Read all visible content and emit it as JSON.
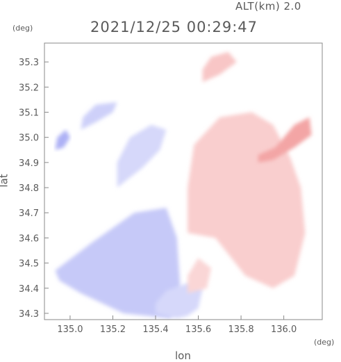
{
  "header": {
    "altitude": "ALT(km) 2.0",
    "timestamp": "2021/12/25 00:29:47"
  },
  "units": {
    "y": "(deg)",
    "x": "(deg)"
  },
  "chart_data": {
    "type": "heatmap",
    "title": "",
    "xlabel": "lon",
    "ylabel": "lat",
    "xlim": [
      134.88,
      136.18
    ],
    "ylim": [
      34.275,
      35.375
    ],
    "xticks": [
      135.0,
      135.2,
      135.4,
      135.6,
      135.8,
      136.0
    ],
    "xtick_labels": [
      "135.0",
      "135.2",
      "135.4",
      "135.6",
      "135.8",
      "136.0"
    ],
    "yticks": [
      34.3,
      34.4,
      34.5,
      34.6,
      34.7,
      34.8,
      34.9,
      35.0,
      35.1,
      35.2,
      35.3
    ],
    "ytick_labels": [
      "34.3",
      "34.4",
      "34.5",
      "34.6",
      "34.7",
      "34.8",
      "34.9",
      "35.0",
      "35.1",
      "35.2",
      "35.3"
    ],
    "grid": false,
    "colors": {
      "negative": "#8a90f0",
      "positive": "#f08a8a",
      "zero": "#ffffff"
    },
    "regions": [
      {
        "polarity": "negative",
        "intensity": 0.35,
        "lon": [
          134.93,
          135.1,
          135.3,
          135.45,
          135.5,
          135.52,
          135.47,
          135.25,
          135.05,
          134.95
        ],
        "lat": [
          34.47,
          34.58,
          34.7,
          34.72,
          34.6,
          34.35,
          34.28,
          34.3,
          34.38,
          34.43
        ]
      },
      {
        "polarity": "negative",
        "intensity": 0.25,
        "lon": [
          135.22,
          135.34,
          135.42,
          135.45,
          135.38,
          135.28,
          135.22
        ],
        "lat": [
          34.8,
          34.88,
          34.95,
          35.03,
          35.05,
          35.0,
          34.9
        ]
      },
      {
        "polarity": "negative",
        "intensity": 0.3,
        "lon": [
          135.05,
          135.12,
          135.2,
          135.22,
          135.12,
          135.06
        ],
        "lat": [
          35.03,
          35.06,
          35.1,
          35.14,
          35.13,
          35.08
        ]
      },
      {
        "polarity": "negative",
        "intensity": 0.25,
        "lon": [
          135.4,
          135.5,
          135.55,
          135.6,
          135.62,
          135.55,
          135.45,
          135.4
        ],
        "lat": [
          34.3,
          34.28,
          34.29,
          34.32,
          34.4,
          34.42,
          34.39,
          34.34
        ]
      },
      {
        "polarity": "negative",
        "intensity": 0.5,
        "lon": [
          134.93,
          134.97,
          135.0,
          134.98,
          134.94
        ],
        "lat": [
          34.95,
          34.96,
          35.0,
          35.03,
          35.0
        ]
      },
      {
        "polarity": "positive",
        "intensity": 0.3,
        "lon": [
          135.55,
          135.68,
          135.82,
          135.95,
          136.05,
          136.1,
          136.08,
          136.03,
          135.95,
          135.85,
          135.7,
          135.58,
          135.55
        ],
        "lat": [
          34.62,
          34.6,
          34.45,
          34.4,
          34.45,
          34.62,
          34.8,
          34.92,
          35.05,
          35.1,
          35.08,
          34.97,
          34.8
        ]
      },
      {
        "polarity": "positive",
        "intensity": 0.55,
        "lon": [
          135.88,
          135.96,
          136.05,
          136.12,
          136.13,
          136.05,
          135.95,
          135.88
        ],
        "lat": [
          34.93,
          34.96,
          35.05,
          35.08,
          35.01,
          34.96,
          34.91,
          34.9
        ]
      },
      {
        "polarity": "positive",
        "intensity": 0.35,
        "lon": [
          135.62,
          135.7,
          135.78,
          135.74,
          135.66,
          135.62
        ],
        "lat": [
          35.22,
          35.25,
          35.3,
          35.34,
          35.32,
          35.27
        ]
      },
      {
        "polarity": "positive",
        "intensity": 0.25,
        "lon": [
          135.55,
          135.64,
          135.66,
          135.6,
          135.55
        ],
        "lat": [
          34.38,
          34.4,
          34.48,
          34.52,
          34.45
        ]
      }
    ]
  }
}
